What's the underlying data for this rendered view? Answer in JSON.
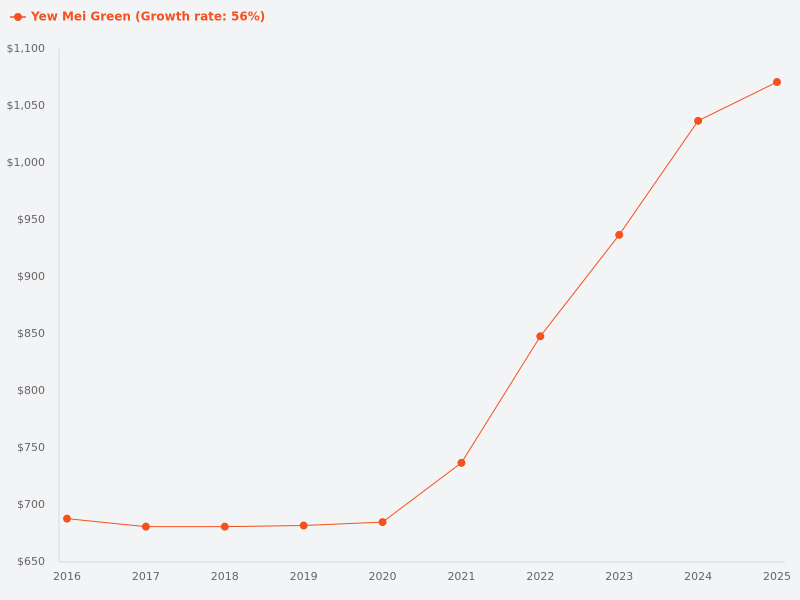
{
  "chart_data": {
    "type": "line",
    "categories": [
      "2016",
      "2017",
      "2018",
      "2019",
      "2020",
      "2021",
      "2022",
      "2023",
      "2024",
      "2025"
    ],
    "series": [
      {
        "name": "Yew Mei Green (Growth rate: 56%)",
        "color": "#f4511e",
        "values": [
          688,
          681,
          681,
          682,
          685,
          737,
          848,
          937,
          1037,
          1071
        ]
      }
    ],
    "ylim": [
      650,
      1100
    ],
    "yticks": [
      {
        "value": 650,
        "label": "$650"
      },
      {
        "value": 700,
        "label": "$700"
      },
      {
        "value": 750,
        "label": "$750"
      },
      {
        "value": 800,
        "label": "$800"
      },
      {
        "value": 850,
        "label": "$850"
      },
      {
        "value": 900,
        "label": "$900"
      },
      {
        "value": 950,
        "label": "$950"
      },
      {
        "value": 1000,
        "label": "$1,000"
      },
      {
        "value": 1050,
        "label": "$1,050"
      },
      {
        "value": 1100,
        "label": "$1,100"
      }
    ],
    "grid": false,
    "legend": "top-left"
  }
}
